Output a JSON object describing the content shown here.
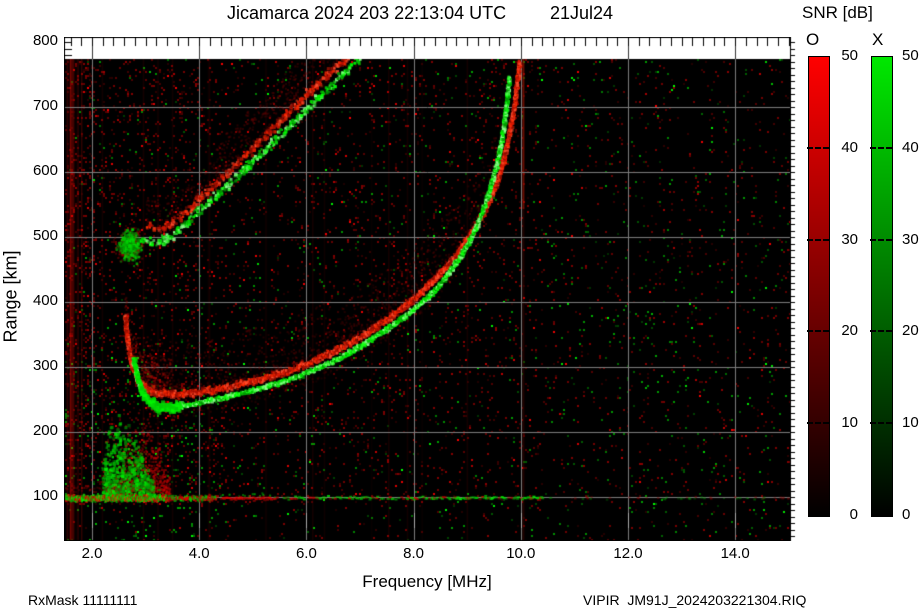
{
  "title": {
    "text": "Jicamarca 2024 203 22:13:04 UTC",
    "date": "21Jul24"
  },
  "footer": {
    "rx_mask": "RxMask 11111111",
    "file": "VIPIR  JM91J_2024203221304.RIQ"
  },
  "axes": {
    "x": {
      "label": "Frequency [MHz]",
      "tick_labels": [
        "2.0",
        "4.0",
        "6.0",
        "8.0",
        "10.0",
        "12.0",
        "14.0"
      ],
      "tick_values": [
        2,
        4,
        6,
        8,
        10,
        12,
        14
      ],
      "range": [
        1.47,
        15.03
      ],
      "minor_step_mhz": 0.2
    },
    "y": {
      "label": "Range [km]",
      "tick_labels": [
        "800",
        "700",
        "600",
        "500",
        "400",
        "300",
        "200",
        "100"
      ],
      "tick_values": [
        800,
        700,
        600,
        500,
        400,
        300,
        200,
        100
      ],
      "range": [
        34,
        806
      ],
      "minor_step_km": 10
    }
  },
  "colorbar": {
    "title": "SNR [dB]",
    "tick_labels": [
      "50",
      "40",
      "30",
      "20",
      "10",
      "0"
    ],
    "tick_values": [
      50,
      40,
      30,
      20,
      10,
      0
    ],
    "dash_values": [
      40,
      30,
      20,
      10
    ],
    "range_db": [
      0,
      50
    ],
    "bars": [
      {
        "label": "O",
        "top_color": "#ff0000",
        "bottom_color": "#000000"
      },
      {
        "label": "X",
        "top_color": "#00e800",
        "bottom_color": "#000000"
      }
    ]
  },
  "chart_data": {
    "type": "heatmap",
    "description": "VIPIR HF ionogram: echo SNR vs sounding frequency and virtual range. Red = O-mode, green = X-mode.",
    "title": "Jicamarca 2024 203 22:13:04 UTC 21Jul24",
    "xlabel": "Frequency [MHz]",
    "ylabel": "Range [km]",
    "xlim": [
      1.47,
      15.03
    ],
    "ylim": [
      34,
      806
    ],
    "grid": {
      "x_every_mhz": 2,
      "y_every_km": 100,
      "color": "#7d7d7d"
    },
    "snr_scale_db": [
      0,
      50
    ],
    "background": "#000000",
    "traces": [
      {
        "name": "F-region O-mode trace, 1st hop",
        "mode": "O",
        "color": "#ff2200",
        "points": [
          [
            2.6,
            378
          ],
          [
            2.66,
            332
          ],
          [
            2.74,
            300
          ],
          [
            2.85,
            281
          ],
          [
            3.0,
            268
          ],
          [
            3.2,
            261
          ],
          [
            3.5,
            259
          ],
          [
            4.0,
            263
          ],
          [
            4.5,
            270
          ],
          [
            5.0,
            280
          ],
          [
            5.5,
            292
          ],
          [
            6.0,
            307
          ],
          [
            6.5,
            325
          ],
          [
            7.0,
            348
          ],
          [
            7.5,
            375
          ],
          [
            8.0,
            407
          ],
          [
            8.4,
            438
          ],
          [
            8.8,
            476
          ],
          [
            9.1,
            512
          ],
          [
            9.4,
            556
          ],
          [
            9.6,
            602
          ],
          [
            9.75,
            650
          ],
          [
            9.85,
            697
          ],
          [
            9.92,
            742
          ],
          [
            9.96,
            772
          ]
        ]
      },
      {
        "name": "F-region X-mode trace, 1st hop",
        "mode": "X",
        "color": "#00ff00",
        "points": [
          [
            2.76,
            312
          ],
          [
            2.83,
            284
          ],
          [
            2.92,
            262
          ],
          [
            3.05,
            248
          ],
          [
            3.25,
            240
          ],
          [
            3.5,
            240
          ],
          [
            4.0,
            247
          ],
          [
            4.5,
            256
          ],
          [
            5.0,
            266
          ],
          [
            5.5,
            278
          ],
          [
            6.0,
            293
          ],
          [
            6.5,
            311
          ],
          [
            7.0,
            334
          ],
          [
            7.5,
            361
          ],
          [
            8.0,
            391
          ],
          [
            8.4,
            421
          ],
          [
            8.7,
            453
          ],
          [
            9.0,
            491
          ],
          [
            9.2,
            526
          ],
          [
            9.4,
            572
          ],
          [
            9.55,
            617
          ],
          [
            9.65,
            662
          ],
          [
            9.72,
            707
          ],
          [
            9.77,
            748
          ]
        ]
      },
      {
        "name": "Second-hop F trace, green component",
        "mode": "X",
        "color": "#00cc00",
        "points": [
          [
            2.88,
            500
          ],
          [
            3.1,
            492
          ],
          [
            3.35,
            497
          ],
          [
            3.6,
            513
          ],
          [
            4.0,
            543
          ],
          [
            4.5,
            580
          ],
          [
            5.0,
            620
          ],
          [
            5.5,
            660
          ],
          [
            6.0,
            700
          ],
          [
            6.4,
            732
          ],
          [
            6.8,
            764
          ],
          [
            7.05,
            783
          ]
        ]
      },
      {
        "name": "Second-hop F trace, red component",
        "mode": "O",
        "color": "#cc1100",
        "points": [
          [
            3.0,
            519
          ],
          [
            3.3,
            514
          ],
          [
            3.6,
            531
          ],
          [
            4.0,
            562
          ],
          [
            4.5,
            600
          ],
          [
            5.0,
            641
          ],
          [
            5.5,
            681
          ],
          [
            6.0,
            721
          ],
          [
            6.4,
            753
          ],
          [
            6.75,
            780
          ]
        ]
      }
    ],
    "e_region": {
      "virtual_range_km": 102,
      "segments": [
        {
          "mhz": [
            1.47,
            3.35
          ],
          "intensity": "bright-mixed"
        },
        {
          "mhz": [
            3.35,
            4.3
          ],
          "intensity": "medium-mixed"
        },
        {
          "mhz": [
            4.3,
            5.4
          ],
          "intensity": "red-dashes"
        },
        {
          "mhz": [
            5.4,
            10.4
          ],
          "intensity": "faint-green"
        },
        {
          "mhz": [
            10.4,
            15.0
          ],
          "intensity": "sparse"
        }
      ]
    },
    "features": {
      "o_mode_asymptote_mhz": 10.0,
      "x_mode_asymptote_mhz": 9.77,
      "interference_streak_mhz": 10.03,
      "low_freq_scatter": {
        "mhz": [
          2.15,
          3.45
        ],
        "km": [
          100,
          250
        ]
      },
      "second_hop_scatter": {
        "mhz": [
          2.35,
          3.3
        ],
        "km": [
          440,
          520
        ]
      },
      "left_edge_interference_mhz": [
        1.47,
        2.0
      ]
    }
  }
}
